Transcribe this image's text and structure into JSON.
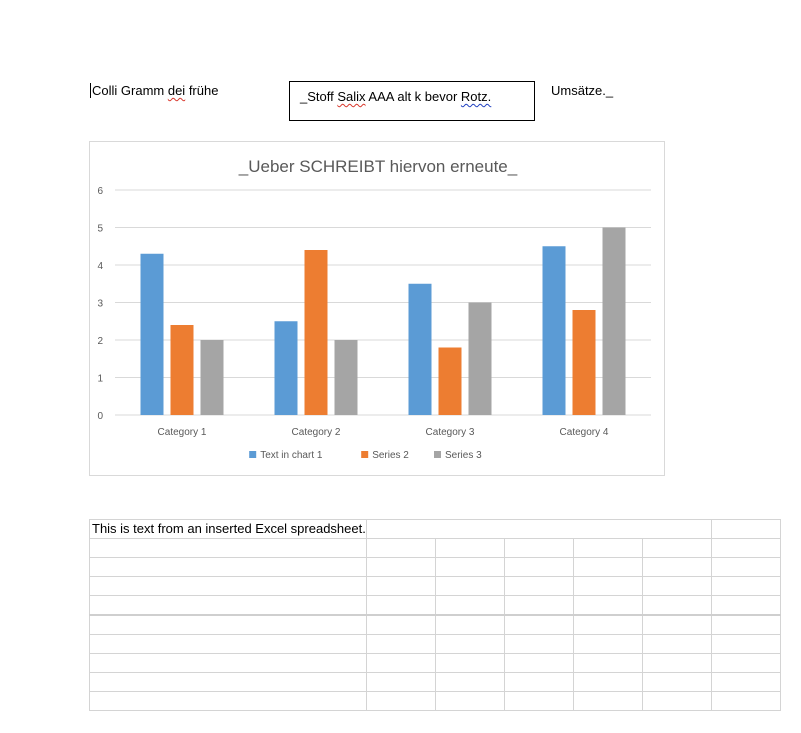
{
  "doc": {
    "left_text": {
      "part1": "Colli Gramm ",
      "misspelled": "dei",
      "part2": " frühe"
    },
    "textbox": {
      "prefix": "_Stoff ",
      "misspelled": "Salix",
      "middle": " AAA alt k bevor ",
      "grammar_flag": "Rotz.",
      "suffix": ""
    },
    "right_text": "Umsätze._"
  },
  "colors": {
    "series1": "#5b9bd5",
    "series2": "#ed7d31",
    "series3": "#a5a5a5",
    "gridline": "#d9d9d9",
    "axis_text": "#595959"
  },
  "chart_data": {
    "type": "bar",
    "title": "_Ueber SCHREIBT hiervon erneute_",
    "categories": [
      "Category 1",
      "Category 2",
      "Category 3",
      "Category 4"
    ],
    "series": [
      {
        "name": "Text in chart 1",
        "values": [
          4.3,
          2.5,
          3.5,
          4.5
        ]
      },
      {
        "name": "Series 2",
        "values": [
          2.4,
          4.4,
          1.8,
          2.8
        ]
      },
      {
        "name": "Series 3",
        "values": [
          2,
          2,
          3,
          5
        ]
      }
    ],
    "ylim": [
      0,
      6
    ],
    "yticks": [
      0,
      1,
      2,
      3,
      4,
      5,
      6
    ],
    "grid": true,
    "legend": "bottom"
  },
  "spreadsheet": {
    "cols": 7,
    "rows": 10,
    "cell_A1": "This is text from an inserted Excel spreadsheet."
  }
}
